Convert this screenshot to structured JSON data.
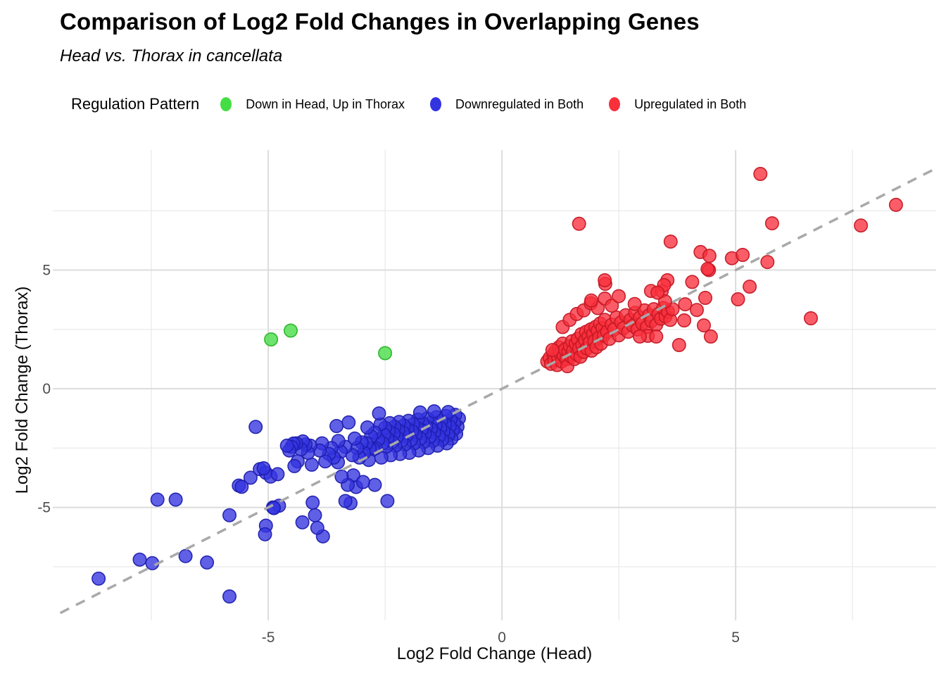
{
  "header": {
    "title": "Comparison of Log2 Fold Changes in Overlapping Genes",
    "subtitle": "Head vs. Thorax in cancellata"
  },
  "legend": {
    "title": "Regulation Pattern",
    "items": [
      {
        "label": "Down in Head, Up in Thorax",
        "color": "#44dd44"
      },
      {
        "label": "Downregulated in Both",
        "color": "#3333e0"
      },
      {
        "label": "Upregulated in Both",
        "color": "#f8303c"
      }
    ]
  },
  "chart_data": {
    "type": "scatter",
    "title": "Comparison of Log2 Fold Changes in Overlapping Genes",
    "subtitle": "Head vs. Thorax in cancellata",
    "xlabel": "Log2 Fold Change (Head)",
    "ylabel": "Log2 Fold Change (Thorax)",
    "xlim": [
      -9.61,
      9.29
    ],
    "ylim": [
      -9.76,
      10.06
    ],
    "x_ticks": {
      "major": [
        -5,
        0,
        5
      ],
      "minor": [
        -7.5,
        -2.5,
        2.5,
        7.5
      ]
    },
    "y_ticks": {
      "major": [
        -5,
        0,
        5
      ],
      "minor": [
        -7.5,
        -2.5,
        2.5,
        7.5
      ]
    },
    "grid": {
      "major_color": "#dcdcdc",
      "minor_color": "#ebebeb"
    },
    "identity_line": {
      "from": [
        -9.45,
        -9.45
      ],
      "to": [
        9.29,
        9.29
      ],
      "color": "#a9a9a9",
      "dash": "14 11",
      "width": 3.5
    },
    "marker": {
      "radius": 9.2,
      "fill_opacity": 0.78,
      "stroke_width": 1.6
    },
    "series": [
      {
        "name": "Down in Head, Up in Thorax",
        "color": "#44dd44",
        "stroke": "#28b428",
        "points": [
          [
            -4.94,
            2.08
          ],
          [
            -4.52,
            2.45
          ],
          [
            -2.5,
            1.5
          ]
        ]
      },
      {
        "name": "Downregulated in Both",
        "color": "#3333e0",
        "stroke": "#1f1fae",
        "points": [
          [
            -0.92,
            -1.25
          ],
          [
            -0.95,
            -1.6
          ],
          [
            -0.98,
            -1.9
          ],
          [
            -1.0,
            -1.1
          ],
          [
            -1.02,
            -1.45
          ],
          [
            -1.05,
            -1.75
          ],
          [
            -1.08,
            -2.1
          ],
          [
            -1.1,
            -1.3
          ],
          [
            -1.12,
            -1.6
          ],
          [
            -1.15,
            -1.95
          ],
          [
            -1.18,
            -2.3
          ],
          [
            -1.2,
            -1.15
          ],
          [
            -1.22,
            -1.5
          ],
          [
            -1.25,
            -1.8
          ],
          [
            -1.28,
            -2.15
          ],
          [
            -1.3,
            -1.35
          ],
          [
            -1.32,
            -1.65
          ],
          [
            -1.35,
            -2.0
          ],
          [
            -1.38,
            -2.4
          ],
          [
            -1.4,
            -1.2
          ],
          [
            -1.42,
            -1.55
          ],
          [
            -1.45,
            -1.85
          ],
          [
            -1.48,
            -2.2
          ],
          [
            -1.5,
            -1.4
          ],
          [
            -1.52,
            -1.7
          ],
          [
            -1.55,
            -2.05
          ],
          [
            -1.58,
            -2.5
          ],
          [
            -1.6,
            -1.25
          ],
          [
            -1.62,
            -1.6
          ],
          [
            -1.65,
            -1.9
          ],
          [
            -1.68,
            -2.25
          ],
          [
            -1.7,
            -1.45
          ],
          [
            -1.72,
            -1.75
          ],
          [
            -1.75,
            -2.1
          ],
          [
            -1.78,
            -2.6
          ],
          [
            -1.8,
            -1.3
          ],
          [
            -1.82,
            -1.65
          ],
          [
            -1.85,
            -1.95
          ],
          [
            -1.88,
            -2.3
          ],
          [
            -1.9,
            -1.5
          ],
          [
            -1.92,
            -1.8
          ],
          [
            -1.95,
            -2.15
          ],
          [
            -1.98,
            -2.7
          ],
          [
            -2.0,
            -1.35
          ],
          [
            -2.02,
            -1.7
          ],
          [
            -2.05,
            -2.0
          ],
          [
            -2.08,
            -2.35
          ],
          [
            -2.1,
            -1.55
          ],
          [
            -2.12,
            -1.85
          ],
          [
            -2.15,
            -2.2
          ],
          [
            -2.18,
            -2.75
          ],
          [
            -2.2,
            -1.4
          ],
          [
            -2.22,
            -1.75
          ],
          [
            -2.25,
            -2.05
          ],
          [
            -2.28,
            -2.4
          ],
          [
            -2.3,
            -1.6
          ],
          [
            -2.32,
            -1.9
          ],
          [
            -2.35,
            -2.25
          ],
          [
            -2.38,
            -2.8
          ],
          [
            -2.4,
            -1.45
          ],
          [
            -2.42,
            -1.8
          ],
          [
            -2.45,
            -2.1
          ],
          [
            -2.48,
            -2.45
          ],
          [
            -2.5,
            -1.65
          ],
          [
            -2.52,
            -1.95
          ],
          [
            -2.55,
            -2.3
          ],
          [
            -2.58,
            -2.9
          ],
          [
            -2.6,
            -1.5
          ],
          [
            -2.63,
            -1.04
          ],
          [
            -2.65,
            -2.15
          ],
          [
            -2.7,
            -2.5
          ],
          [
            -1.15,
            -0.98
          ],
          [
            -1.45,
            -0.95
          ],
          [
            -1.75,
            -1.0
          ],
          [
            -2.72,
            -1.85
          ],
          [
            -2.75,
            -2.55
          ],
          [
            -2.8,
            -2.0
          ],
          [
            -2.83,
            -2.52
          ],
          [
            -2.85,
            -3.0
          ],
          [
            -2.88,
            -1.63
          ],
          [
            -2.9,
            -2.3
          ],
          [
            -2.95,
            -2.7
          ],
          [
            -3.0,
            -2.26
          ],
          [
            -3.05,
            -2.9
          ],
          [
            -3.1,
            -2.5
          ],
          [
            -3.12,
            -4.14
          ],
          [
            -3.15,
            -2.1
          ],
          [
            -3.18,
            -3.65
          ],
          [
            -3.2,
            -2.8
          ],
          [
            -3.24,
            -4.82
          ],
          [
            -3.28,
            -1.42
          ],
          [
            -3.3,
            -4.05
          ],
          [
            -3.35,
            -2.45
          ],
          [
            -3.35,
            -4.73
          ],
          [
            -3.43,
            -3.7
          ],
          [
            -3.45,
            -2.65
          ],
          [
            -3.5,
            -2.2
          ],
          [
            -3.51,
            -3.1
          ],
          [
            -3.54,
            -1.57
          ],
          [
            -3.6,
            -2.9
          ],
          [
            -3.65,
            -2.5
          ],
          [
            -3.7,
            -2.75
          ],
          [
            -3.78,
            -3.06
          ],
          [
            -3.83,
            -6.22
          ],
          [
            -3.85,
            -2.3
          ],
          [
            -3.9,
            -2.6
          ],
          [
            -3.95,
            -5.86
          ],
          [
            -4.0,
            -5.33
          ],
          [
            -4.05,
            -4.8
          ],
          [
            -4.07,
            -3.2
          ],
          [
            -4.1,
            -2.4
          ],
          [
            -4.15,
            -2.7
          ],
          [
            -4.2,
            -2.35
          ],
          [
            -4.26,
            -2.22
          ],
          [
            -4.27,
            -5.63
          ],
          [
            -4.3,
            -2.55
          ],
          [
            -4.37,
            -3.06
          ],
          [
            -4.4,
            -2.3
          ],
          [
            -4.44,
            -3.26
          ],
          [
            -4.46,
            -2.31
          ],
          [
            -4.5,
            -2.45
          ],
          [
            -4.55,
            -2.6
          ],
          [
            -4.6,
            -2.4
          ],
          [
            -4.77,
            -4.93
          ],
          [
            -4.9,
            -5.0
          ],
          [
            -2.45,
            -4.73
          ],
          [
            -2.72,
            -4.05
          ],
          [
            -2.97,
            -3.93
          ],
          [
            -5.27,
            -1.61
          ],
          [
            -5.63,
            -4.08
          ],
          [
            -5.38,
            -3.75
          ],
          [
            -5.18,
            -3.39
          ],
          [
            -5.05,
            -3.54
          ],
          [
            -7.37,
            -4.67
          ],
          [
            -6.98,
            -4.67
          ],
          [
            -5.83,
            -5.33
          ],
          [
            -5.05,
            -5.77
          ],
          [
            -5.07,
            -6.13
          ],
          [
            -4.88,
            -5.03
          ],
          [
            -7.75,
            -7.2
          ],
          [
            -7.48,
            -7.35
          ],
          [
            -6.77,
            -7.05
          ],
          [
            -6.31,
            -7.32
          ],
          [
            -8.63,
            -8.0
          ],
          [
            -5.83,
            -8.75
          ],
          [
            -5.57,
            -4.13
          ],
          [
            -4.95,
            -3.7
          ],
          [
            -4.8,
            -3.6
          ],
          [
            -5.1,
            -3.35
          ]
        ]
      },
      {
        "name": "Upregulated in Both",
        "color": "#f8303c",
        "stroke": "#c41824",
        "points": [
          [
            0.97,
            1.15
          ],
          [
            1.02,
            1.3
          ],
          [
            1.05,
            1.05
          ],
          [
            1.1,
            1.45
          ],
          [
            1.12,
            1.2
          ],
          [
            1.15,
            1.6
          ],
          [
            1.18,
            1.0
          ],
          [
            1.2,
            1.35
          ],
          [
            1.22,
            1.75
          ],
          [
            1.25,
            1.5
          ],
          [
            1.28,
            1.15
          ],
          [
            1.3,
            1.9
          ],
          [
            1.32,
            1.4
          ],
          [
            1.35,
            1.65
          ],
          [
            1.38,
            1.25
          ],
          [
            1.4,
            0.95
          ],
          [
            1.42,
            1.55
          ],
          [
            1.45,
            1.8
          ],
          [
            1.48,
            1.35
          ],
          [
            1.5,
            2.0
          ],
          [
            1.52,
            1.6
          ],
          [
            1.55,
            1.25
          ],
          [
            1.58,
            1.9
          ],
          [
            1.6,
            1.45
          ],
          [
            1.62,
            2.1
          ],
          [
            1.65,
            1.7
          ],
          [
            1.68,
            1.35
          ],
          [
            1.7,
            2.3
          ],
          [
            1.72,
            1.85
          ],
          [
            1.75,
            1.55
          ],
          [
            1.78,
            2.05
          ],
          [
            1.8,
            2.4
          ],
          [
            1.82,
            1.7
          ],
          [
            1.85,
            2.2
          ],
          [
            1.88,
            1.95
          ],
          [
            1.9,
            2.5
          ],
          [
            1.92,
            1.6
          ],
          [
            1.95,
            2.3
          ],
          [
            1.98,
            2.0
          ],
          [
            2.0,
            2.6
          ],
          [
            2.02,
            1.75
          ],
          [
            2.05,
            2.45
          ],
          [
            2.08,
            2.15
          ],
          [
            2.1,
            2.75
          ],
          [
            2.12,
            1.9
          ],
          [
            2.15,
            2.55
          ],
          [
            2.18,
            2.25
          ],
          [
            2.2,
            2.9
          ],
          [
            2.25,
            2.4
          ],
          [
            2.3,
            2.1
          ],
          [
            2.35,
            2.7
          ],
          [
            2.4,
            2.5
          ],
          [
            2.45,
            3.0
          ],
          [
            2.5,
            2.25
          ],
          [
            2.55,
            2.8
          ],
          [
            2.6,
            2.55
          ],
          [
            2.65,
            3.1
          ],
          [
            2.7,
            2.4
          ],
          [
            2.75,
            2.9
          ],
          [
            2.8,
            2.65
          ],
          [
            2.85,
            3.2
          ],
          [
            2.9,
            2.5
          ],
          [
            2.95,
            3.0
          ],
          [
            3.0,
            2.75
          ],
          [
            3.05,
            3.3
          ],
          [
            3.1,
            2.6
          ],
          [
            3.15,
            3.1
          ],
          [
            3.2,
            2.85
          ],
          [
            3.25,
            3.35
          ],
          [
            3.3,
            2.7
          ],
          [
            3.35,
            3.15
          ],
          [
            3.4,
            2.95
          ],
          [
            3.45,
            3.4
          ],
          [
            3.5,
            3.05
          ],
          [
            3.55,
            3.25
          ],
          [
            3.6,
            2.9
          ],
          [
            3.65,
            3.35
          ],
          [
            1.08,
            1.63
          ],
          [
            1.3,
            2.6
          ],
          [
            1.45,
            2.9
          ],
          [
            1.6,
            3.15
          ],
          [
            1.75,
            3.3
          ],
          [
            1.9,
            3.6
          ],
          [
            2.05,
            3.4
          ],
          [
            2.2,
            3.8
          ],
          [
            2.35,
            3.5
          ],
          [
            2.5,
            3.9
          ],
          [
            2.84,
            3.57
          ],
          [
            3.19,
            4.12
          ],
          [
            2.21,
            4.42
          ],
          [
            1.91,
            3.72
          ],
          [
            3.42,
            4.12
          ],
          [
            3.49,
            3.68
          ],
          [
            3.92,
            3.56
          ],
          [
            4.17,
            3.32
          ],
          [
            4.35,
            3.83
          ],
          [
            3.9,
            2.88
          ],
          [
            4.32,
            2.67
          ],
          [
            4.47,
            2.2
          ],
          [
            3.79,
            1.84
          ],
          [
            3.12,
            2.23
          ],
          [
            3.3,
            2.2
          ],
          [
            3.54,
            4.57
          ],
          [
            4.07,
            4.5
          ],
          [
            2.2,
            4.57
          ],
          [
            3.47,
            4.37
          ],
          [
            3.33,
            4.05
          ],
          [
            2.95,
            2.2
          ],
          [
            1.65,
            6.95
          ],
          [
            5.53,
            9.05
          ],
          [
            5.78,
            6.97
          ],
          [
            7.68,
            6.88
          ],
          [
            8.43,
            7.75
          ],
          [
            3.61,
            6.2
          ],
          [
            4.25,
            5.76
          ],
          [
            4.44,
            5.6
          ],
          [
            4.92,
            5.5
          ],
          [
            5.15,
            5.64
          ],
          [
            5.68,
            5.34
          ],
          [
            4.43,
            5.0
          ],
          [
            5.3,
            4.3
          ],
          [
            5.05,
            3.77
          ],
          [
            6.61,
            2.97
          ],
          [
            4.4,
            5.05
          ]
        ]
      }
    ]
  }
}
